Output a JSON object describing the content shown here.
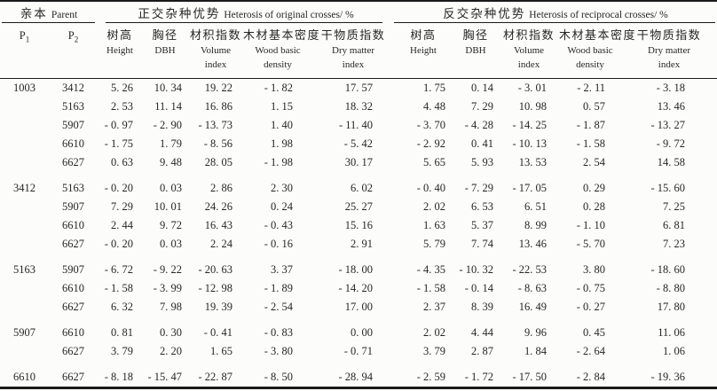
{
  "table": {
    "header": {
      "parent": {
        "zh": "亲本",
        "en": "Parent"
      },
      "p1_base": "P",
      "p1_sub": "1",
      "p2_base": "P",
      "p2_sub": "2",
      "group_original": {
        "zh": "正交杂种优势",
        "en": "Heterosis of original crosses/ %"
      },
      "group_reciprocal": {
        "zh": "反交杂种优势",
        "en": "Heterosis of reciprocal crosses/ %"
      },
      "metrics": [
        {
          "zh": "树高",
          "en1": "Height",
          "en2": ""
        },
        {
          "zh": "胸径",
          "en1": "DBH",
          "en2": ""
        },
        {
          "zh": "材积指数",
          "en1": "Volume",
          "en2": "index"
        },
        {
          "zh": "木材基本密度",
          "en1": "Wood basic",
          "en2": "density"
        },
        {
          "zh": "干物质指数",
          "en1": "Dry matter",
          "en2": "index"
        }
      ]
    },
    "rows": [
      {
        "p1": "1003",
        "p2": "3412",
        "original": [
          "5.26",
          "10.34",
          "19.22",
          "-1.82",
          "17.57"
        ],
        "reciprocal": [
          "1.75",
          "0.14",
          "-3.01",
          "-2.11",
          "-3.18"
        ]
      },
      {
        "p1": "",
        "p2": "5163",
        "original": [
          "2.53",
          "11.14",
          "16.86",
          "1.15",
          "18.32"
        ],
        "reciprocal": [
          "4.48",
          "7.29",
          "10.98",
          "0.57",
          "13.46"
        ]
      },
      {
        "p1": "",
        "p2": "5907",
        "original": [
          "-0.97",
          "-2.90",
          "-13.73",
          "1.40",
          "-11.40"
        ],
        "reciprocal": [
          "-3.70",
          "-4.28",
          "-14.25",
          "-1.87",
          "-13.27"
        ]
      },
      {
        "p1": "",
        "p2": "6610",
        "original": [
          "-1.75",
          "1.79",
          "-8.56",
          "1.98",
          "-5.42"
        ],
        "reciprocal": [
          "-2.92",
          "0.41",
          "-10.13",
          "-1.58",
          "-9.72"
        ]
      },
      {
        "p1": "",
        "p2": "6627",
        "original": [
          "0.63",
          "9.48",
          "28.05",
          "-1.98",
          "30.17"
        ],
        "reciprocal": [
          "5.65",
          "5.93",
          "13.53",
          "2.54",
          "14.58"
        ]
      },
      {
        "p1": "3412",
        "p2": "5163",
        "original": [
          "-0.20",
          "0.03",
          "2.86",
          "2.30",
          "6.02"
        ],
        "reciprocal": [
          "-0.40",
          "-7.29",
          "-17.05",
          "0.29",
          "-15.60"
        ]
      },
      {
        "p1": "",
        "p2": "5907",
        "original": [
          "7.29",
          "10.01",
          "24.26",
          "0.24",
          "25.27"
        ],
        "reciprocal": [
          "2.02",
          "6.53",
          "6.51",
          "0.28",
          "7.25"
        ]
      },
      {
        "p1": "",
        "p2": "6610",
        "original": [
          "2.44",
          "9.72",
          "16.43",
          "-0.43",
          "15.16"
        ],
        "reciprocal": [
          "1.63",
          "5.37",
          "8.99",
          "-1.10",
          "6.81"
        ]
      },
      {
        "p1": "",
        "p2": "6627",
        "original": [
          "-0.20",
          "0.03",
          "2.24",
          "-0.16",
          "2.91"
        ],
        "reciprocal": [
          "5.79",
          "7.74",
          "13.46",
          "-5.70",
          "7.23"
        ]
      },
      {
        "p1": "5163",
        "p2": "5907",
        "original": [
          "-6.72",
          "-9.22",
          "-20.63",
          "3.37",
          "-18.00"
        ],
        "reciprocal": [
          "-4.35",
          "-10.32",
          "-22.53",
          "3.80",
          "-18.60"
        ]
      },
      {
        "p1": "",
        "p2": "6610",
        "original": [
          "-1.58",
          "-3.99",
          "-12.98",
          "-1.89",
          "-14.20"
        ],
        "reciprocal": [
          "-1.58",
          "-0.14",
          "-8.63",
          "-0.75",
          "-8.80"
        ]
      },
      {
        "p1": "",
        "p2": "6627",
        "original": [
          "6.32",
          "7.98",
          "19.39",
          "-2.54",
          "17.00"
        ],
        "reciprocal": [
          "2.37",
          "8.39",
          "16.49",
          "-0.27",
          "17.80"
        ]
      },
      {
        "p1": "5907",
        "p2": "6610",
        "original": [
          "0.81",
          "0.30",
          "-0.41",
          "-0.83",
          "0.00"
        ],
        "reciprocal": [
          "2.02",
          "4.44",
          "9.96",
          "0.45",
          "11.06"
        ]
      },
      {
        "p1": "",
        "p2": "6627",
        "original": [
          "3.79",
          "2.20",
          "1.65",
          "-3.80",
          "-0.71"
        ],
        "reciprocal": [
          "3.79",
          "2.87",
          "1.84",
          "-2.64",
          "1.06"
        ]
      },
      {
        "p1": "6610",
        "p2": "6627",
        "original": [
          "-8.18",
          "-15.47",
          "-22.87",
          "-8.50",
          "-28.94"
        ],
        "reciprocal": [
          "-2.59",
          "-1.72",
          "-17.50",
          "-2.84",
          "-19.36"
        ]
      }
    ]
  },
  "colors": {
    "text": "#262626",
    "rule": "#1a1a1a",
    "background": "#fcfcfb"
  }
}
